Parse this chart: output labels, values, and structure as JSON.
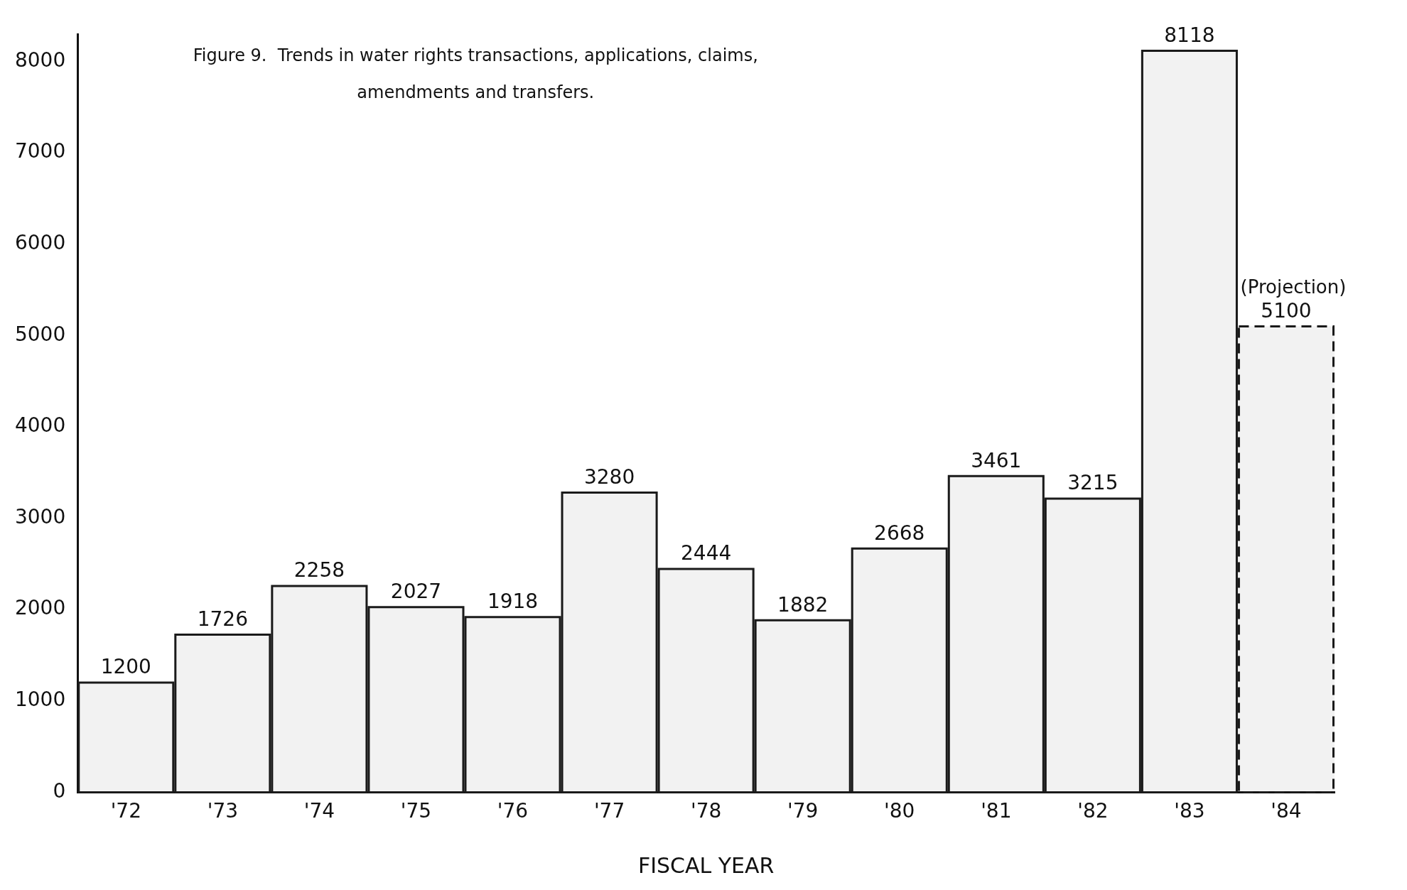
{
  "chart_data": {
    "type": "bar",
    "title": "Figure 9.  Trends in water rights transactions, applications, claims, amendments and transfers.",
    "xlabel": "FISCAL YEAR",
    "categories": [
      "'72",
      "'73",
      "'74",
      "'75",
      "'76",
      "'77",
      "'78",
      "'79",
      "'80",
      "'81",
      "'82",
      "'83",
      "'84"
    ],
    "series": [
      {
        "color": "#1a1a1a",
        "line_style": "solid",
        "values": [
          1200,
          1726,
          2258,
          2027,
          1918,
          3280,
          2444,
          1882,
          2668,
          3461,
          3215,
          8118,
          null
        ]
      },
      {
        "color": "#1a1a1a",
        "line_style": "dashed",
        "values": [
          null,
          null,
          null,
          null,
          null,
          null,
          null,
          null,
          null,
          null,
          null,
          null,
          5100
        ]
      }
    ],
    "ylim": [
      0,
      8300
    ],
    "yticks": [
      0,
      1000,
      2000,
      3000,
      4000,
      5000,
      6000,
      7000,
      8000
    ],
    "grid": false,
    "legend": false,
    "data_labels": true,
    "annotations": [
      "(Projection)"
    ]
  }
}
